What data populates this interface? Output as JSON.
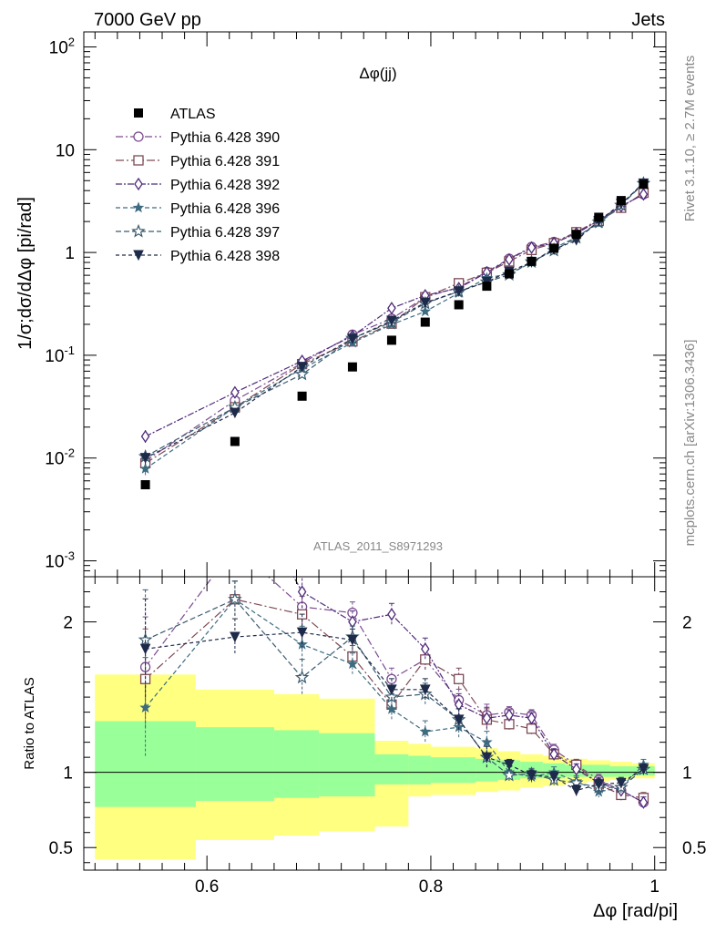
{
  "header": {
    "left": "7000 GeV pp",
    "right": "Jets"
  },
  "side_labels": {
    "rivet": "Rivet 3.1.10, ≥ 2.7M events",
    "mcplots": "mcplots.cern.ch [arXiv:1306.3436]"
  },
  "chart_data": {
    "type": "scatter",
    "title": "Δφ(jj)",
    "analysis_label": "ATLAS_2011_S8971293",
    "xlabel": "Δφ [rad/pi]",
    "ylabel": "1/σ;dσ/dΔφ [pi/rad]",
    "ratio_ylabel": "Ratio to ATLAS",
    "xlim": [
      0.49,
      1.01
    ],
    "ylim": [
      0.0007,
      140
    ],
    "yscale": "log",
    "ratio_ylim": [
      0.35,
      2.3
    ],
    "x_ticks": [
      0.6,
      0.8,
      1
    ],
    "x_tick_labels": [
      "0.6",
      "0.8",
      "1"
    ],
    "y_tick_labels": [
      "10^-3",
      "10^-2",
      "10^-1",
      "1",
      "10",
      "10^2"
    ],
    "ratio_tick_labels": [
      "0.5",
      "1",
      "2"
    ],
    "legend_position": "top-left",
    "bins": [
      [
        0.5,
        0.59
      ],
      [
        0.59,
        0.66
      ],
      [
        0.66,
        0.7
      ],
      [
        0.7,
        0.75
      ],
      [
        0.75,
        0.78
      ],
      [
        0.78,
        0.8
      ],
      [
        0.8,
        0.84
      ],
      [
        0.84,
        0.86
      ],
      [
        0.86,
        0.88
      ],
      [
        0.88,
        0.9
      ],
      [
        0.9,
        0.92
      ],
      [
        0.92,
        0.94
      ],
      [
        0.94,
        0.96
      ],
      [
        0.96,
        0.98
      ],
      [
        0.98,
        1.0
      ]
    ],
    "band_inner": [
      [
        0.77,
        1.34
      ],
      [
        0.81,
        1.3
      ],
      [
        0.83,
        1.28
      ],
      [
        0.84,
        1.26
      ],
      [
        0.92,
        1.12
      ],
      [
        0.92,
        1.11
      ],
      [
        0.93,
        1.1
      ],
      [
        0.94,
        1.09
      ],
      [
        0.95,
        1.08
      ],
      [
        0.96,
        1.07
      ],
      [
        0.96,
        1.06
      ],
      [
        0.97,
        1.05
      ],
      [
        0.97,
        1.05
      ],
      [
        0.97,
        1.04
      ],
      [
        0.98,
        1.04
      ]
    ],
    "band_outer": [
      [
        0.42,
        1.65
      ],
      [
        0.55,
        1.55
      ],
      [
        0.58,
        1.52
      ],
      [
        0.61,
        1.49
      ],
      [
        0.64,
        1.21
      ],
      [
        0.84,
        1.19
      ],
      [
        0.85,
        1.17
      ],
      [
        0.87,
        1.16
      ],
      [
        0.88,
        1.14
      ],
      [
        0.9,
        1.12
      ],
      [
        0.91,
        1.11
      ],
      [
        0.93,
        1.09
      ],
      [
        0.94,
        1.08
      ],
      [
        0.95,
        1.07
      ],
      [
        0.96,
        1.06
      ]
    ],
    "data": {
      "name": "ATLAS",
      "x": [
        0.545,
        0.625,
        0.685,
        0.73,
        0.765,
        0.795,
        0.825,
        0.85,
        0.87,
        0.89,
        0.91,
        0.93,
        0.95,
        0.97,
        0.99
      ],
      "y": [
        0.0055,
        0.0145,
        0.04,
        0.077,
        0.14,
        0.21,
        0.31,
        0.47,
        0.62,
        0.82,
        1.1,
        1.5,
        2.2,
        3.2,
        4.6
      ]
    },
    "series": [
      {
        "name": "Pythia 6.428 390",
        "color": "#7a4b8f",
        "marker": "open-circle",
        "x": [
          0.545,
          0.625,
          0.685,
          0.73,
          0.765,
          0.795,
          0.825,
          0.85,
          0.87,
          0.89,
          0.91,
          0.93,
          0.95,
          0.97,
          0.99
        ],
        "ratio": [
          1.7,
          2.5,
          2.1,
          2.06,
          1.62,
          1.75,
          1.48,
          1.38,
          1.4,
          1.38,
          1.15,
          1.05,
          0.95,
          0.88,
          0.8
        ]
      },
      {
        "name": "Pythia 6.428 391",
        "color": "#7d4a55",
        "marker": "open-square",
        "x": [
          0.545,
          0.625,
          0.685,
          0.73,
          0.765,
          0.795,
          0.825,
          0.85,
          0.87,
          0.89,
          0.91,
          0.93,
          0.95,
          0.97,
          0.99
        ],
        "ratio": [
          1.62,
          2.15,
          2.05,
          1.77,
          1.45,
          1.75,
          1.62,
          1.35,
          1.32,
          1.29,
          1.12,
          1.05,
          0.92,
          0.85,
          0.83
        ]
      },
      {
        "name": "Pythia 6.428 392",
        "color": "#4f2a7a",
        "marker": "open-diamond",
        "x": [
          0.545,
          0.625,
          0.685,
          0.73,
          0.765,
          0.795,
          0.825,
          0.85,
          0.87,
          0.89,
          0.91,
          0.93,
          0.95,
          0.97,
          0.99
        ],
        "ratio": [
          2.95,
          3.0,
          2.2,
          2.0,
          2.05,
          1.82,
          1.45,
          1.36,
          1.38,
          1.36,
          1.12,
          1.02,
          0.93,
          0.88,
          0.8
        ]
      },
      {
        "name": "Pythia 6.428 396",
        "color": "#3e6b80",
        "marker": "star",
        "x": [
          0.545,
          0.625,
          0.685,
          0.73,
          0.765,
          0.795,
          0.825,
          0.85,
          0.87,
          0.89,
          0.91,
          0.93,
          0.95,
          0.97,
          0.99
        ],
        "ratio": [
          1.43,
          2.15,
          1.85,
          1.72,
          1.42,
          1.27,
          1.3,
          1.2,
          1.0,
          0.97,
          1.0,
          0.94,
          0.87,
          0.9,
          1.05
        ]
      },
      {
        "name": "Pythia 6.428 397",
        "color": "#3a5a6e",
        "marker": "open-star",
        "x": [
          0.545,
          0.625,
          0.685,
          0.73,
          0.765,
          0.795,
          0.825,
          0.85,
          0.87,
          0.89,
          0.91,
          0.93,
          0.95,
          0.97,
          0.99
        ],
        "ratio": [
          1.88,
          2.15,
          1.63,
          1.9,
          1.5,
          1.52,
          1.35,
          1.1,
          0.98,
          0.99,
          0.95,
          0.93,
          0.9,
          0.9,
          1.02
        ]
      },
      {
        "name": "Pythia 6.428 398",
        "color": "#1e2a4a",
        "marker": "filled-down-triangle",
        "x": [
          0.545,
          0.625,
          0.685,
          0.73,
          0.765,
          0.795,
          0.825,
          0.85,
          0.87,
          0.89,
          0.91,
          0.93,
          0.95,
          0.97,
          0.99
        ],
        "ratio": [
          1.82,
          1.9,
          1.93,
          1.88,
          1.55,
          1.55,
          1.35,
          1.1,
          1.05,
          0.98,
          0.97,
          0.88,
          0.92,
          0.93,
          1.02
        ]
      }
    ]
  }
}
